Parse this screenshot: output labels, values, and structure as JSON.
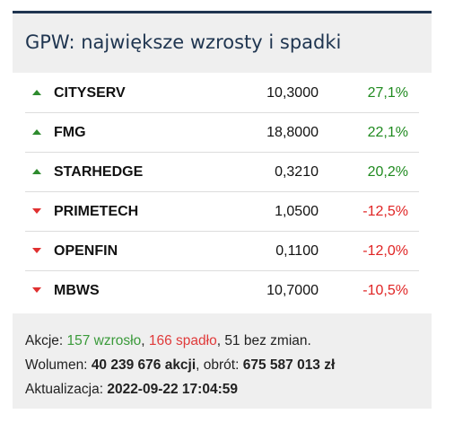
{
  "header": {
    "title": "GPW: największe wzrosty i spadki"
  },
  "table": {
    "rows": [
      {
        "name": "CITYSERV",
        "price": "10,3000",
        "change": "27,1%",
        "trend": "up"
      },
      {
        "name": "FMG",
        "price": "18,8000",
        "change": "22,1%",
        "trend": "up"
      },
      {
        "name": "STARHEDGE",
        "price": "0,3210",
        "change": "20,2%",
        "trend": "up"
      },
      {
        "name": "PRIMETECH",
        "price": "1,0500",
        "change": "-12,5%",
        "trend": "down"
      },
      {
        "name": "OPENFIN",
        "price": "0,1100",
        "change": "-12,0%",
        "trend": "down"
      },
      {
        "name": "MBWS",
        "price": "10,7000",
        "change": "-10,5%",
        "trend": "down"
      }
    ]
  },
  "footer": {
    "shares": {
      "label": "Akcje: ",
      "up": "157 wzrosło",
      "sep": ", ",
      "down": "166 spadło",
      "rest": ", 51 bez zmian."
    },
    "volume": {
      "label": "Wolumen: ",
      "value": "40 239 676 akcji",
      "turnover_label": ", obrót: ",
      "turnover": "675 587 013 zł"
    },
    "updated": {
      "label": "Aktualizacja: ",
      "value": "2022-09-22 17:04:59"
    }
  }
}
